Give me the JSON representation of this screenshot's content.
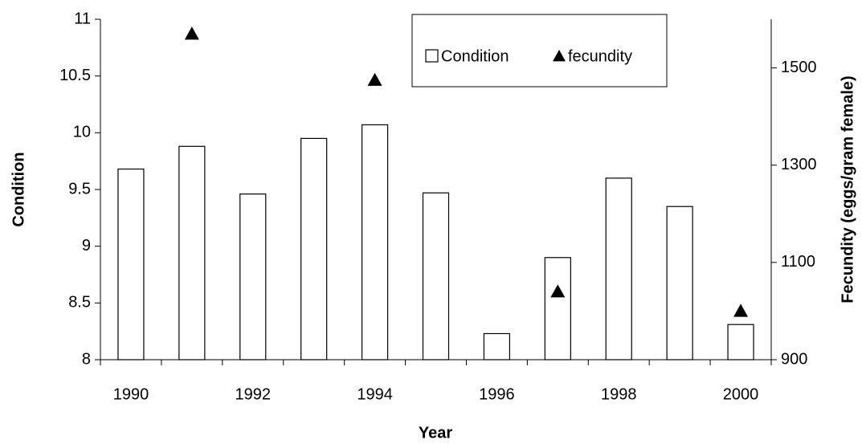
{
  "chart_data": {
    "type": "bar",
    "xlabel": "Year",
    "ylabel": "Condition",
    "y2label": "Fecundity (eggs/gram female)",
    "categories": [
      "1990",
      null,
      "1992",
      null,
      "1994",
      null,
      "1996",
      null,
      "1998",
      null,
      "2000"
    ],
    "series": [
      {
        "name": "Condition",
        "type": "bar",
        "axis": "y",
        "color": "#ffffff",
        "values": [
          9.68,
          9.88,
          9.46,
          9.95,
          10.07,
          9.47,
          8.23,
          8.9,
          9.6,
          9.35,
          8.31
        ]
      },
      {
        "name": "fecundity",
        "type": "scatter",
        "axis": "y2",
        "color": "#000000",
        "values": [
          null,
          1570,
          null,
          null,
          1475,
          null,
          null,
          1040,
          null,
          null,
          1000
        ]
      }
    ],
    "ylim": [
      8,
      11
    ],
    "yticks": [
      8,
      8.5,
      9,
      9.5,
      10,
      10.5,
      11
    ],
    "y2lim": [
      900,
      1600
    ],
    "y2ticks": [
      900,
      1100,
      1300,
      1500
    ],
    "legend": "top-right"
  }
}
